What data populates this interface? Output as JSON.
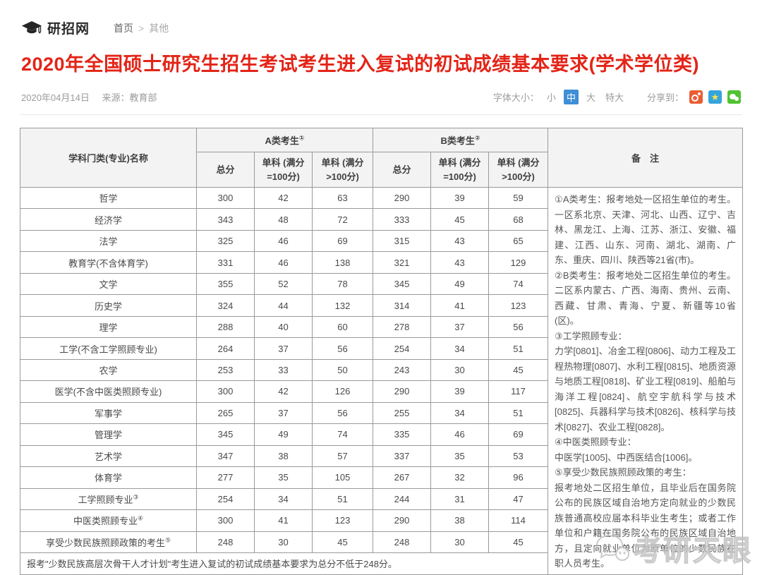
{
  "site": {
    "logo_text": "研招网",
    "breadcrumb": {
      "home": "首页",
      "separator": ">",
      "current": "其他"
    }
  },
  "article": {
    "title": "2020年全国硕士研究生招生考试考生进入复试的初试成绩基本要求(学术学位类)",
    "date": "2020年04月14日",
    "source": "来源：教育部"
  },
  "toolbar": {
    "font_size_label": "字体大小：",
    "font_sizes": [
      "小",
      "中",
      "大",
      "特大"
    ],
    "active_font_size": "中",
    "share_label": "分享到：",
    "share_icons": [
      "weibo",
      "qzone",
      "wechat"
    ],
    "qzone_star": "★",
    "accent_blue": "#3f8ed6",
    "title_red": "#e32417"
  },
  "table": {
    "header": {
      "col_subject": "学科门类(专业)名称",
      "group_a": {
        "label": "A类考生",
        "sup": "①"
      },
      "group_b": {
        "label": "B类考生",
        "sup": "②"
      },
      "sub_cols": [
        "总分",
        "单科 (满分=100分)",
        "单科 (满分>100分)"
      ],
      "col_remark": "备　注"
    },
    "rows": [
      {
        "name": "哲学",
        "sup": "",
        "values": [
          "300",
          "42",
          "63",
          "290",
          "39",
          "59"
        ]
      },
      {
        "name": "经济学",
        "sup": "",
        "values": [
          "343",
          "48",
          "72",
          "333",
          "45",
          "68"
        ]
      },
      {
        "name": "法学",
        "sup": "",
        "values": [
          "325",
          "46",
          "69",
          "315",
          "43",
          "65"
        ]
      },
      {
        "name": "教育学(不含体育学)",
        "sup": "",
        "values": [
          "331",
          "46",
          "138",
          "321",
          "43",
          "129"
        ]
      },
      {
        "name": "文学",
        "sup": "",
        "values": [
          "355",
          "52",
          "78",
          "345",
          "49",
          "74"
        ]
      },
      {
        "name": "历史学",
        "sup": "",
        "values": [
          "324",
          "44",
          "132",
          "314",
          "41",
          "123"
        ]
      },
      {
        "name": "理学",
        "sup": "",
        "values": [
          "288",
          "40",
          "60",
          "278",
          "37",
          "56"
        ]
      },
      {
        "name": "工学(不含工学照顾专业)",
        "sup": "",
        "values": [
          "264",
          "37",
          "56",
          "254",
          "34",
          "51"
        ]
      },
      {
        "name": "农学",
        "sup": "",
        "values": [
          "253",
          "33",
          "50",
          "243",
          "30",
          "45"
        ]
      },
      {
        "name": "医学(不含中医类照顾专业)",
        "sup": "",
        "values": [
          "300",
          "42",
          "126",
          "290",
          "39",
          "117"
        ]
      },
      {
        "name": "军事学",
        "sup": "",
        "values": [
          "265",
          "37",
          "56",
          "255",
          "34",
          "51"
        ]
      },
      {
        "name": "管理学",
        "sup": "",
        "values": [
          "345",
          "49",
          "74",
          "335",
          "46",
          "69"
        ]
      },
      {
        "name": "艺术学",
        "sup": "",
        "values": [
          "347",
          "38",
          "57",
          "337",
          "35",
          "53"
        ]
      },
      {
        "name": "体育学",
        "sup": "",
        "values": [
          "277",
          "35",
          "105",
          "267",
          "32",
          "96"
        ]
      },
      {
        "name": "工学照顾专业",
        "sup": "③",
        "values": [
          "254",
          "34",
          "51",
          "244",
          "31",
          "47"
        ]
      },
      {
        "name": "中医类照顾专业",
        "sup": "④",
        "values": [
          "300",
          "41",
          "123",
          "290",
          "38",
          "114"
        ]
      },
      {
        "name": "享受少数民族照顾政策的考生",
        "sup": "⑤",
        "values": [
          "248",
          "30",
          "45",
          "248",
          "30",
          "45"
        ]
      }
    ],
    "remark_paragraphs": [
      "①A类考生：报考地处一区招生单位的考生。一区系北京、天津、河北、山西、辽宁、吉林、黑龙江、上海、江苏、浙江、安徽、福建、江西、山东、河南、湖北、湖南、广东、重庆、四川、陕西等21省(市)。",
      "②B类考生：报考地处二区招生单位的考生。二区系内蒙古、广西、海南、贵州、云南、西藏、甘肃、青海、宁夏、新疆等10省(区)。",
      "③工学照顾专业：",
      "力学[0801]、冶金工程[0806]、动力工程及工程热物理[0807]、水利工程[0815]、地质资源与地质工程[0818]、矿业工程[0819]、船舶与海洋工程[0824]、航空宇航科学与技术[0825]、兵器科学与技术[0826]、核科学与技术[0827]、农业工程[0828]。",
      "④中医类照顾专业：",
      "中医学[1005]、中西医结合[1006]。",
      "⑤享受少数民族照顾政策的考生：",
      "报考地处二区招生单位，且毕业后在国务院公布的民族区域自治地方定向就业的少数民族普通高校应届本科毕业生考生；或者工作单位和户籍在国务院公布的民族区域自治地方，且定向就业单位为原单位的少数民族在职人员考生。"
    ],
    "footnote": "报考\"少数民族高层次骨干人才计划\"考生进入复试的初试成绩基本要求为总分不低于248分。"
  },
  "watermark": {
    "text": "考研天眼"
  }
}
